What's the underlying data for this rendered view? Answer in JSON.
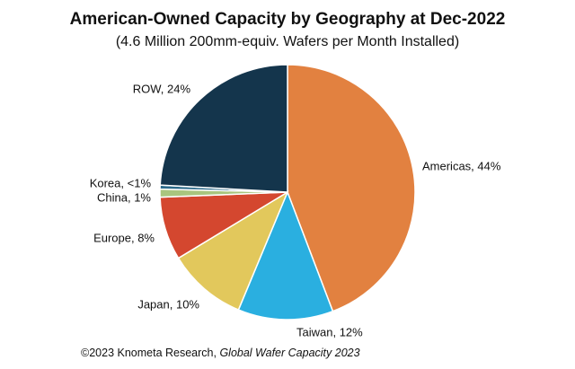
{
  "chart_data": {
    "type": "pie",
    "title": "American-Owned Capacity by Geography at Dec-2022",
    "subtitle": "(4.6 Million 200mm-equiv. Wafers per Month Installed)",
    "labels": [
      "Americas, 44%",
      "Taiwan, 12%",
      "Japan, 10%",
      "Europe, 8%",
      "China, 1%",
      "Korea, <1%",
      "ROW, 24%"
    ],
    "values": [
      44,
      12,
      10,
      8,
      1,
      0.5,
      24
    ],
    "colors": [
      "#e28140",
      "#2aafe0",
      "#e2c85c",
      "#d4472f",
      "#a9c57e",
      "#2b6a8a",
      "#14354c"
    ],
    "source": "©2023 Knometa Research,",
    "source_title": "Global Wafer Capacity 2023"
  }
}
